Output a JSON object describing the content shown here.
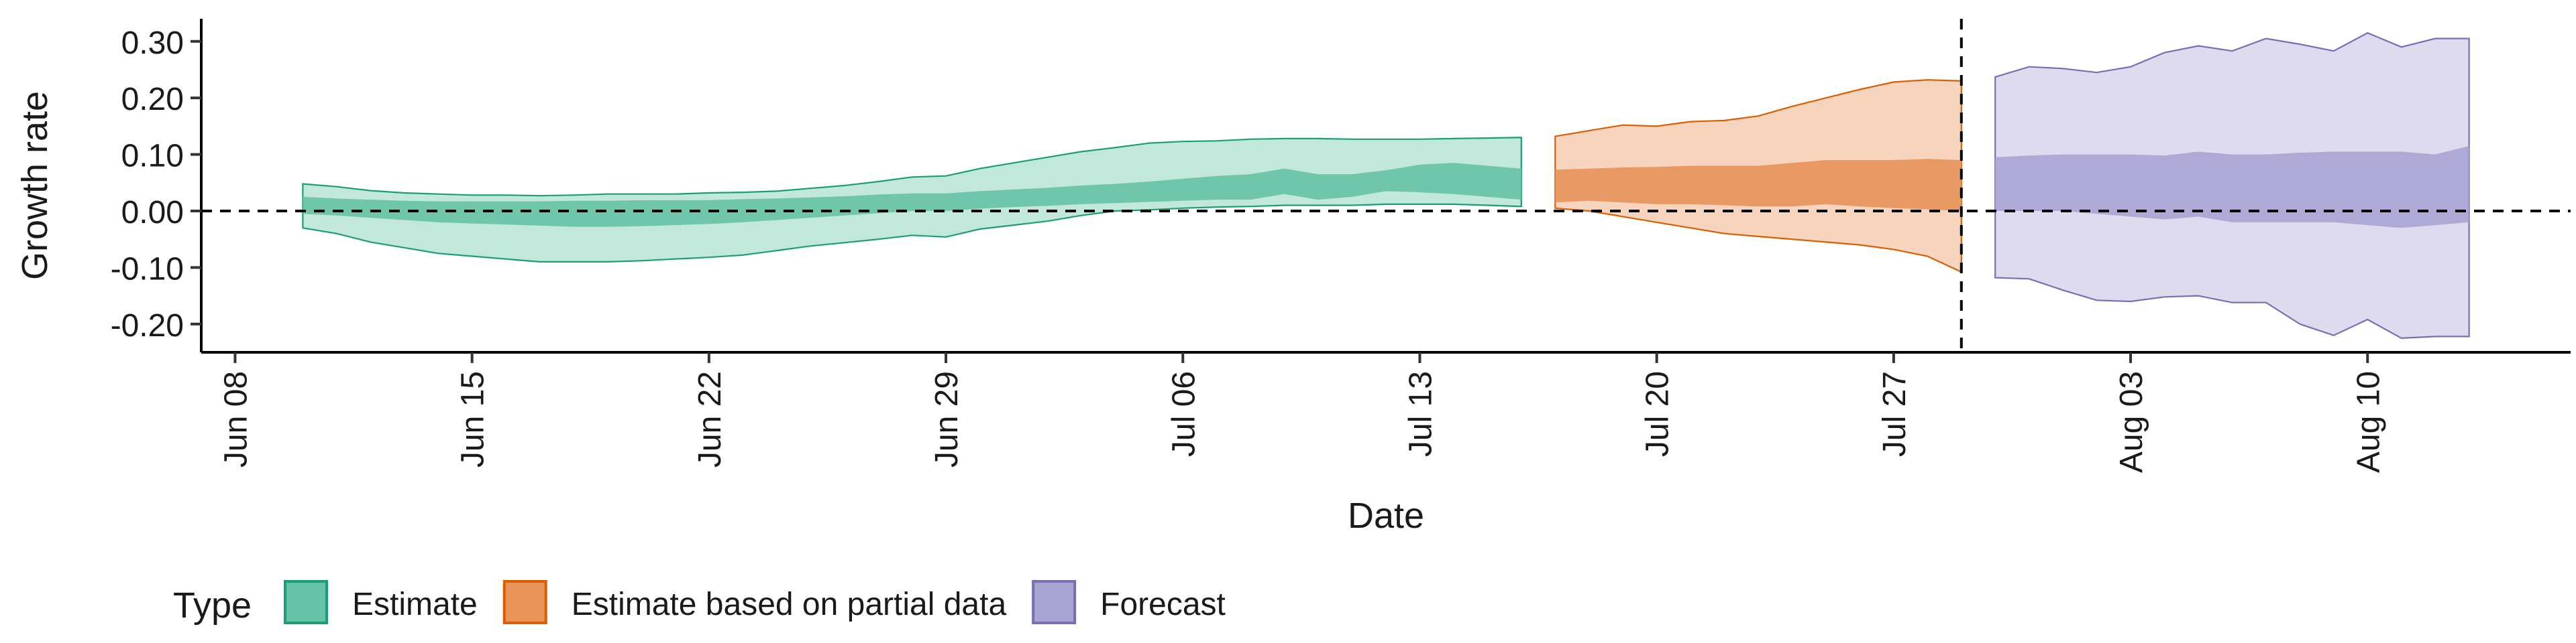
{
  "chart_data": {
    "type": "area",
    "title": "",
    "xlabel": "Date",
    "ylabel": "Growth rate",
    "ylim": [
      -0.25,
      0.34
    ],
    "yticks": [
      -0.2,
      -0.1,
      0.0,
      0.1,
      0.2,
      0.3
    ],
    "ytick_labels": [
      "-0.20",
      "-0.10",
      "0.00",
      "0.10",
      "0.20",
      "0.30"
    ],
    "xlim": [
      "2020-06-07",
      "2020-08-16"
    ],
    "xticks": [
      "2020-06-08",
      "2020-06-15",
      "2020-06-22",
      "2020-06-29",
      "2020-07-06",
      "2020-07-13",
      "2020-07-20",
      "2020-07-27",
      "2020-08-03",
      "2020-08-10"
    ],
    "xtick_labels": [
      "Jun 08",
      "Jun 15",
      "Jun 22",
      "Jun 29",
      "Jul 06",
      "Jul 13",
      "Jul 20",
      "Jul 27",
      "Aug 03",
      "Aug 10"
    ],
    "reference_lines": {
      "horizontal_y": 0.0,
      "vertical_x": "2020-07-29"
    },
    "grid": false,
    "legend": {
      "title": "Type",
      "placement": "bottom-left"
    },
    "colors": {
      "Estimate": "#66c2a5",
      "Estimate based on partial data": "#e8945a",
      "Forecast": "#a9a4d2"
    },
    "border_colors": {
      "Estimate": "#1b9e77",
      "Estimate based on partial data": "#d95f02",
      "Forecast": "#7570b3"
    },
    "series": [
      {
        "name": "Estimate",
        "x": [
          "2020-06-10",
          "2020-06-11",
          "2020-06-12",
          "2020-06-13",
          "2020-06-14",
          "2020-06-15",
          "2020-06-16",
          "2020-06-17",
          "2020-06-18",
          "2020-06-19",
          "2020-06-20",
          "2020-06-21",
          "2020-06-22",
          "2020-06-23",
          "2020-06-24",
          "2020-06-25",
          "2020-06-26",
          "2020-06-27",
          "2020-06-28",
          "2020-06-29",
          "2020-06-30",
          "2020-07-01",
          "2020-07-02",
          "2020-07-03",
          "2020-07-04",
          "2020-07-05",
          "2020-07-06",
          "2020-07-07",
          "2020-07-08",
          "2020-07-09",
          "2020-07-10",
          "2020-07-11",
          "2020-07-12",
          "2020-07-13",
          "2020-07-14",
          "2020-07-15",
          "2020-07-16"
        ],
        "lower_90": [
          -0.03,
          -0.04,
          -0.055,
          -0.065,
          -0.075,
          -0.08,
          -0.085,
          -0.09,
          -0.09,
          -0.09,
          -0.088,
          -0.085,
          -0.082,
          -0.078,
          -0.07,
          -0.062,
          -0.056,
          -0.05,
          -0.043,
          -0.046,
          -0.032,
          -0.025,
          -0.018,
          -0.008,
          0.0,
          0.002,
          0.005,
          0.007,
          0.008,
          0.01,
          0.01,
          0.01,
          0.012,
          0.012,
          0.012,
          0.01,
          0.008
        ],
        "upper_90": [
          0.048,
          0.043,
          0.036,
          0.032,
          0.03,
          0.028,
          0.028,
          0.027,
          0.028,
          0.03,
          0.03,
          0.03,
          0.032,
          0.033,
          0.035,
          0.04,
          0.045,
          0.052,
          0.06,
          0.062,
          0.075,
          0.085,
          0.095,
          0.105,
          0.112,
          0.12,
          0.123,
          0.124,
          0.127,
          0.128,
          0.128,
          0.127,
          0.127,
          0.127,
          0.128,
          0.129,
          0.13
        ],
        "lower_50": [
          -0.005,
          -0.008,
          -0.012,
          -0.016,
          -0.02,
          -0.022,
          -0.024,
          -0.026,
          -0.028,
          -0.028,
          -0.027,
          -0.025,
          -0.023,
          -0.02,
          -0.016,
          -0.012,
          -0.008,
          -0.004,
          0.0,
          0.0,
          0.004,
          0.007,
          0.009,
          0.012,
          0.014,
          0.016,
          0.018,
          0.02,
          0.02,
          0.03,
          0.02,
          0.025,
          0.035,
          0.033,
          0.03,
          0.025,
          0.02
        ],
        "upper_50": [
          0.025,
          0.022,
          0.02,
          0.018,
          0.017,
          0.017,
          0.017,
          0.017,
          0.018,
          0.018,
          0.019,
          0.019,
          0.019,
          0.021,
          0.022,
          0.024,
          0.026,
          0.029,
          0.031,
          0.031,
          0.035,
          0.038,
          0.041,
          0.045,
          0.048,
          0.052,
          0.057,
          0.062,
          0.065,
          0.075,
          0.065,
          0.065,
          0.072,
          0.082,
          0.085,
          0.08,
          0.075
        ]
      },
      {
        "name": "Estimate based on partial data",
        "x": [
          "2020-07-17",
          "2020-07-18",
          "2020-07-19",
          "2020-07-20",
          "2020-07-21",
          "2020-07-22",
          "2020-07-23",
          "2020-07-24",
          "2020-07-25",
          "2020-07-26",
          "2020-07-27",
          "2020-07-28",
          "2020-07-29"
        ],
        "lower_90": [
          0.005,
          0.0,
          -0.01,
          -0.02,
          -0.03,
          -0.04,
          -0.045,
          -0.05,
          -0.055,
          -0.06,
          -0.068,
          -0.08,
          -0.108
        ],
        "upper_90": [
          0.132,
          0.142,
          0.152,
          0.15,
          0.158,
          0.16,
          0.168,
          0.185,
          0.2,
          0.215,
          0.228,
          0.232,
          0.23
        ],
        "lower_50": [
          0.015,
          0.018,
          0.015,
          0.012,
          0.012,
          0.01,
          0.008,
          0.008,
          0.012,
          0.008,
          0.005,
          0.003,
          0.0
        ],
        "upper_50": [
          0.073,
          0.075,
          0.077,
          0.078,
          0.08,
          0.08,
          0.08,
          0.085,
          0.09,
          0.09,
          0.09,
          0.092,
          0.09
        ]
      },
      {
        "name": "Forecast",
        "x": [
          "2020-07-30",
          "2020-07-31",
          "2020-08-01",
          "2020-08-02",
          "2020-08-03",
          "2020-08-04",
          "2020-08-05",
          "2020-08-06",
          "2020-08-07",
          "2020-08-08",
          "2020-08-09",
          "2020-08-10",
          "2020-08-11",
          "2020-08-12",
          "2020-08-13"
        ],
        "lower_90": [
          -0.118,
          -0.12,
          -0.14,
          -0.158,
          -0.16,
          -0.152,
          -0.15,
          -0.162,
          -0.162,
          -0.2,
          -0.22,
          -0.192,
          -0.225,
          -0.222,
          -0.222
        ],
        "upper_90": [
          0.237,
          0.255,
          0.252,
          0.245,
          0.255,
          0.28,
          0.292,
          0.283,
          0.305,
          0.295,
          0.283,
          0.315,
          0.29,
          0.305,
          0.305
        ],
        "lower_50": [
          0.0,
          0.0,
          0.0,
          -0.005,
          -0.01,
          -0.015,
          -0.01,
          -0.02,
          -0.02,
          -0.02,
          -0.02,
          -0.025,
          -0.03,
          -0.025,
          -0.02
        ],
        "upper_50": [
          0.095,
          0.098,
          0.1,
          0.1,
          0.1,
          0.098,
          0.105,
          0.1,
          0.1,
          0.103,
          0.105,
          0.105,
          0.105,
          0.1,
          0.115
        ]
      }
    ]
  }
}
